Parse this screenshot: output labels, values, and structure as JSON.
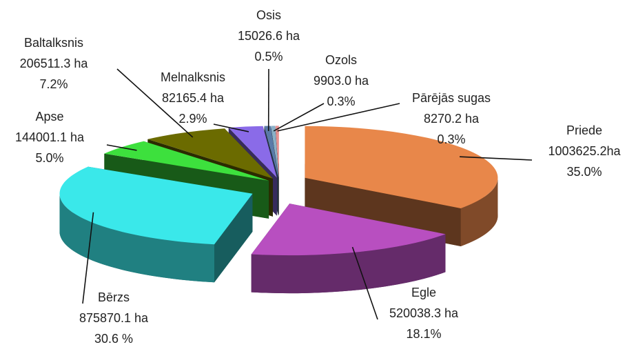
{
  "chart_data": {
    "type": "pie3d",
    "categories": [
      "Priede",
      "Egle",
      "Bērzs",
      "Apse",
      "Baltalksnis",
      "Melnalksnis",
      "Osis",
      "Ozols",
      "Pārējās sugas"
    ],
    "values": [
      1003625.2,
      520038.3,
      875870.1,
      144001.1,
      206511.3,
      82165.4,
      15026.6,
      9903.0,
      8270.2
    ],
    "value_labels": [
      "1003625.2ha",
      "520038.3 ha",
      "875870.1 ha",
      "144001.1 ha",
      "206511.3 ha",
      "82165.4 ha",
      "15026.6 ha",
      "9903.0 ha",
      "8270.2 ha"
    ],
    "percentages": [
      35.0,
      18.1,
      30.6,
      5.0,
      7.2,
      2.9,
      0.5,
      0.3,
      0.3
    ],
    "percentage_labels": [
      "35.0%",
      "18.1%",
      "30.6 %",
      "5.0%",
      "7.2%",
      "2.9%",
      "0.5%",
      "0.3%",
      "0.3%"
    ],
    "colors": [
      "#e8874a",
      "#b84fc0",
      "#3ae8ea",
      "#3de03d",
      "#6b6b00",
      "#8a6be8",
      "#5a7aa8",
      "#8ab0c8",
      "#e89090"
    ]
  }
}
